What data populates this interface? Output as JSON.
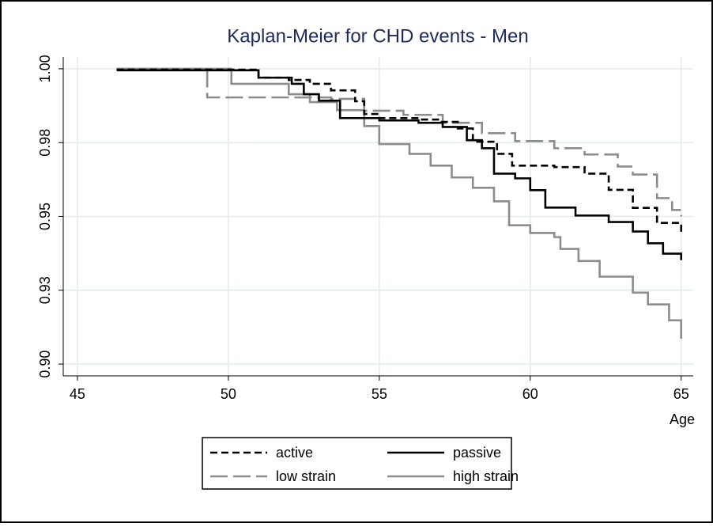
{
  "chart_data": {
    "type": "step",
    "title": "Kaplan-Meier for CHD events - Men",
    "xlabel": "Age",
    "xlim": [
      44.53,
      65.4
    ],
    "xticks": [
      45,
      50,
      55,
      60,
      65
    ],
    "ylim": [
      0.896,
      1.004
    ],
    "yticks": [
      {
        "value": 0.9,
        "label": "0.90"
      },
      {
        "value": 0.925,
        "label": "0.93"
      },
      0.95,
      {
        "value": 0.975,
        "label": "0.98"
      },
      {
        "value": 1,
        "label": "1.00"
      }
    ],
    "grid": true,
    "legend": "bottom",
    "series": [
      {
        "name": "active",
        "color": "#000000",
        "linestyle": "dash",
        "x": [
          46.3,
          51.0,
          52.0,
          52.7,
          53.4,
          54.2,
          54.5,
          55.0,
          56.3,
          57.0,
          57.6,
          58.1,
          58.9,
          59.4,
          60.8,
          61.8,
          62.6,
          63.4,
          64.2,
          65.0
        ],
        "values": [
          0.9997,
          0.997,
          0.9962,
          0.9949,
          0.9927,
          0.989,
          0.9847,
          0.9833,
          0.9828,
          0.982,
          0.9798,
          0.9753,
          0.9712,
          0.9672,
          0.9667,
          0.9645,
          0.959,
          0.9529,
          0.9478,
          0.944
        ]
      },
      {
        "name": "passive",
        "color": "#000000",
        "linestyle": "solid",
        "x": [
          46.3,
          51.0,
          52.1,
          52.5,
          53.0,
          53.7,
          55.0,
          56.3,
          57.1,
          57.9,
          58.4,
          58.8,
          59.5,
          60.0,
          60.5,
          61.5,
          62.6,
          63.4,
          63.9,
          64.4,
          65.0
        ],
        "values": [
          0.9995,
          0.997,
          0.9949,
          0.9914,
          0.9892,
          0.9833,
          0.9825,
          0.9817,
          0.9803,
          0.9758,
          0.9731,
          0.9645,
          0.9629,
          0.9589,
          0.953,
          0.9503,
          0.9481,
          0.9449,
          0.9409,
          0.9374,
          0.9352
        ]
      },
      {
        "name": "low strain",
        "color": "#8c8c8c",
        "linestyle": "longdash",
        "x": [
          46.3,
          49.3,
          53.4,
          54.5,
          55.8,
          57.1,
          58.4,
          59.5,
          60.8,
          61.8,
          62.9,
          63.4,
          64.2,
          64.7,
          65.0
        ],
        "values": [
          1.0,
          0.9903,
          0.9898,
          0.9858,
          0.9844,
          0.9817,
          0.9782,
          0.9755,
          0.9731,
          0.971,
          0.9669,
          0.9642,
          0.9562,
          0.9522,
          0.95
        ]
      },
      {
        "name": "high strain",
        "color": "#8c8c8c",
        "linestyle": "solid",
        "x": [
          46.3,
          50.1,
          52.0,
          52.7,
          53.6,
          54.5,
          55.0,
          56.0,
          56.7,
          57.4,
          58.1,
          58.8,
          59.3,
          60.0,
          60.8,
          61.0,
          61.6,
          62.3,
          63.4,
          63.9,
          64.6,
          65.0
        ],
        "values": [
          1.0,
          0.9949,
          0.9914,
          0.9887,
          0.986,
          0.9806,
          0.9745,
          0.9712,
          0.9672,
          0.9632,
          0.9597,
          0.9551,
          0.947,
          0.9444,
          0.943,
          0.939,
          0.9349,
          0.9296,
          0.9242,
          0.9202,
          0.9148,
          0.9086
        ]
      }
    ]
  }
}
